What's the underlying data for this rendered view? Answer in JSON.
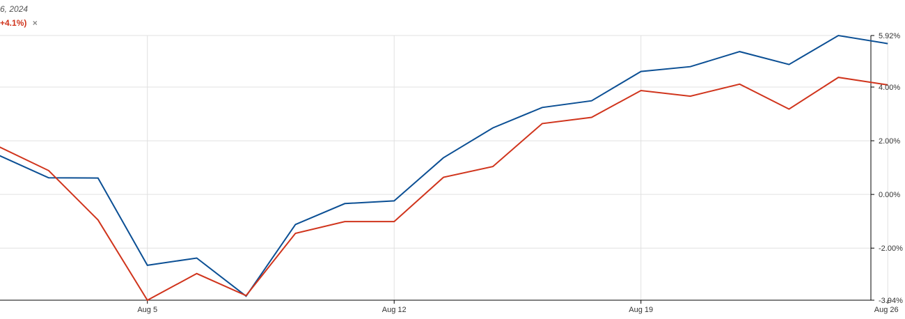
{
  "header": {
    "date_fragment": "6, 2024"
  },
  "legend": {
    "value_text": "+4.1%)",
    "remove_glyph": "×",
    "remove_icon": "close-icon"
  },
  "colors": {
    "series_blue": "#0b4f94",
    "series_red": "#d0341c",
    "grid": "#e0e0e0",
    "axis": "#000000"
  },
  "chart_data": {
    "type": "line",
    "x_tick_labels": [
      "Aug 5",
      "Aug 12",
      "Aug 19",
      "Aug 26"
    ],
    "y_tick_labels": [
      "5.92%",
      "4.00%",
      "2.00%",
      "0.00%",
      "-2.00%",
      "-3.94%"
    ],
    "y_ticks": [
      5.92,
      4.0,
      2.0,
      0.0,
      -2.0,
      -3.94
    ],
    "ylim": [
      -3.94,
      5.92
    ],
    "x": [
      "2024-07-31",
      "2024-08-01",
      "2024-08-02",
      "2024-08-05",
      "2024-08-06",
      "2024-08-07",
      "2024-08-08",
      "2024-08-09",
      "2024-08-12",
      "2024-08-13",
      "2024-08-14",
      "2024-08-15",
      "2024-08-16",
      "2024-08-19",
      "2024-08-20",
      "2024-08-21",
      "2024-08-22",
      "2024-08-23",
      "2024-08-26"
    ],
    "series": [
      {
        "color": "#0b4f94",
        "values": [
          1.45,
          0.62,
          0.61,
          -2.64,
          -2.37,
          -3.79,
          -1.12,
          -0.34,
          -0.24,
          1.37,
          2.48,
          3.24,
          3.49,
          4.58,
          4.76,
          5.32,
          4.84,
          5.92,
          5.62
        ]
      },
      {
        "color": "#d0341c",
        "values": [
          1.77,
          0.89,
          -0.95,
          -3.94,
          -2.95,
          -3.77,
          -1.45,
          -1.01,
          -1.01,
          0.64,
          1.04,
          2.64,
          2.87,
          3.87,
          3.66,
          4.11,
          3.18,
          4.36,
          4.08
        ]
      }
    ]
  }
}
